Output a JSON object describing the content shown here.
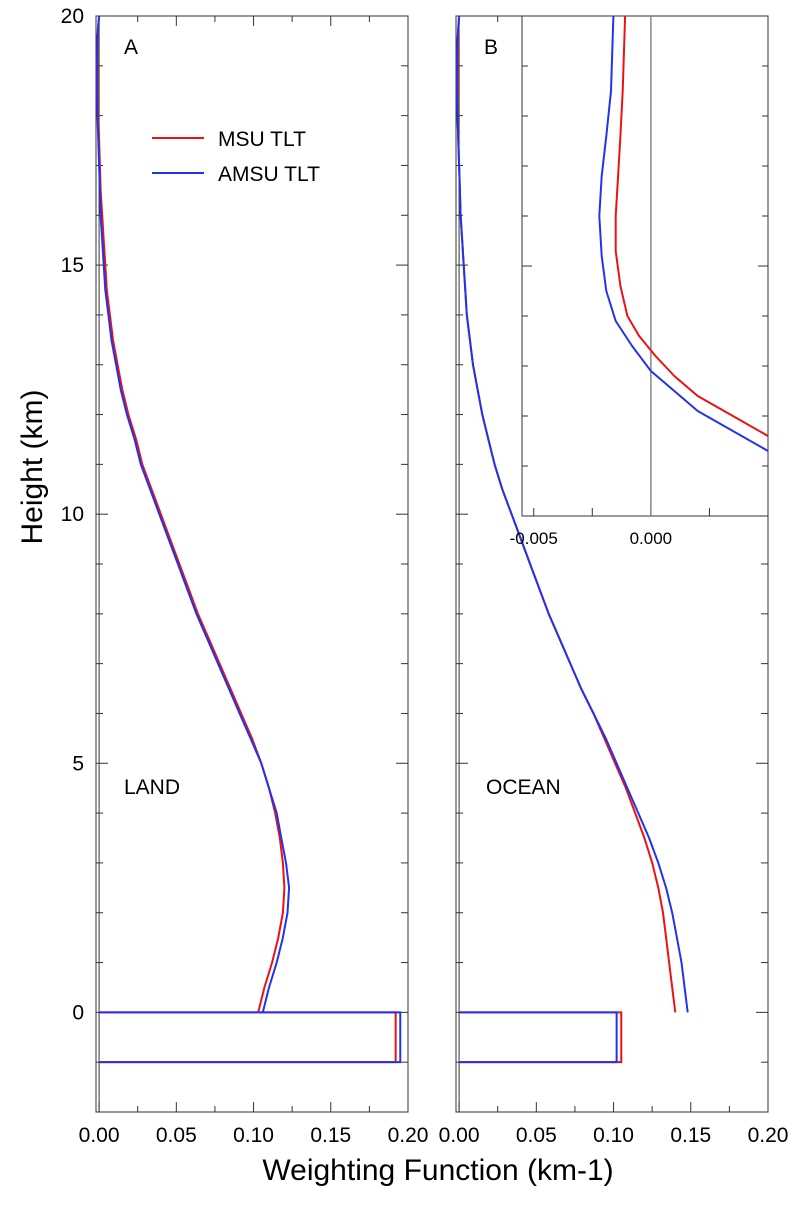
{
  "figure": {
    "ylabel": "Height (km)",
    "xlabel": "Weighting Function (km-1)"
  },
  "legend": {
    "entries": [
      {
        "name": "MSU TLT",
        "color": "#ee1111"
      },
      {
        "name": "AMSU TLT",
        "color": "#2233ee"
      }
    ]
  },
  "chart_data": [
    {
      "type": "line",
      "panel": "A",
      "surface": "LAND",
      "xlim": [
        -0.002,
        0.2
      ],
      "ylim": [
        -2,
        20
      ],
      "xticks": [
        0.0,
        0.05,
        0.1,
        0.15,
        0.2
      ],
      "xtick_labels": [
        "0.00",
        "0.05",
        "0.10",
        "0.15",
        "0.20"
      ],
      "yticks": [
        0,
        5,
        10,
        15,
        20
      ],
      "ytick_labels": [
        "0",
        "5",
        "10",
        "15",
        "20"
      ],
      "series": [
        {
          "name": "MSU TLT",
          "color": "#ee1111",
          "profile": {
            "x": [
              0.103,
              0.107,
              0.112,
              0.116,
              0.119,
              0.12,
              0.119,
              0.117,
              0.114,
              0.11,
              0.105,
              0.099,
              0.092,
              0.085,
              0.078,
              0.071,
              0.064,
              0.058,
              0.052,
              0.046,
              0.04,
              0.034,
              0.028,
              0.024,
              0.019,
              0.015,
              0.012,
              0.009,
              0.007,
              0.005,
              0.004,
              0.003,
              0.002,
              0.001,
              0.0005,
              0.0,
              -0.0005,
              -0.001,
              -0.001,
              -0.001,
              -0.0008,
              -0.0005,
              0.0
            ],
            "y": [
              0.0,
              0.5,
              1.0,
              1.5,
              2.0,
              2.5,
              3.0,
              3.5,
              4.0,
              4.5,
              5.0,
              5.5,
              6.0,
              6.5,
              7.0,
              7.5,
              8.0,
              8.5,
              9.0,
              9.5,
              10.0,
              10.5,
              11.0,
              11.5,
              12.0,
              12.5,
              13.0,
              13.5,
              14.0,
              14.5,
              15.0,
              15.5,
              16.0,
              16.5,
              17.0,
              17.5,
              18.0,
              18.5,
              19.0,
              19.3,
              19.6,
              19.8,
              20.0
            ]
          },
          "surface_box": {
            "value": 0.192,
            "y": [
              -1,
              0
            ]
          }
        },
        {
          "name": "AMSU TLT",
          "color": "#2233ee",
          "profile": {
            "x": [
              0.106,
              0.11,
              0.115,
              0.119,
              0.122,
              0.123,
              0.121,
              0.118,
              0.115,
              0.11,
              0.105,
              0.098,
              0.091,
              0.084,
              0.077,
              0.07,
              0.063,
              0.057,
              0.051,
              0.045,
              0.039,
              0.033,
              0.027,
              0.023,
              0.018,
              0.014,
              0.011,
              0.008,
              0.006,
              0.004,
              0.003,
              0.002,
              0.001,
              0.0005,
              0.0,
              -0.0005,
              -0.001,
              -0.0015,
              -0.0015,
              -0.0012,
              -0.001,
              -0.0006,
              0.0
            ],
            "y": [
              0.0,
              0.5,
              1.0,
              1.5,
              2.0,
              2.5,
              3.0,
              3.5,
              4.0,
              4.5,
              5.0,
              5.5,
              6.0,
              6.5,
              7.0,
              7.5,
              8.0,
              8.5,
              9.0,
              9.5,
              10.0,
              10.5,
              11.0,
              11.5,
              12.0,
              12.5,
              13.0,
              13.5,
              14.0,
              14.5,
              15.0,
              15.5,
              16.0,
              16.5,
              17.0,
              17.5,
              18.0,
              18.5,
              19.0,
              19.3,
              19.6,
              19.8,
              20.0
            ]
          },
          "surface_box": {
            "value": 0.195,
            "y": [
              -1,
              0
            ]
          }
        }
      ]
    },
    {
      "type": "line",
      "panel": "B",
      "surface": "OCEAN",
      "xlim": [
        -0.002,
        0.2
      ],
      "ylim": [
        -2,
        20
      ],
      "xticks": [
        0.0,
        0.05,
        0.1,
        0.15,
        0.2
      ],
      "xtick_labels": [
        "0.00",
        "0.05",
        "0.10",
        "0.15",
        "0.20"
      ],
      "yticks": [
        0,
        5,
        10,
        15,
        20
      ],
      "ytick_labels": [
        "0",
        "5",
        "10",
        "15",
        "20"
      ],
      "series": [
        {
          "name": "MSU TLT",
          "color": "#ee1111",
          "profile": {
            "x": [
              0.14,
              0.138,
              0.136,
              0.134,
              0.132,
              0.129,
              0.125,
              0.12,
              0.114,
              0.108,
              0.101,
              0.094,
              0.087,
              0.079,
              0.072,
              0.065,
              0.058,
              0.052,
              0.046,
              0.04,
              0.034,
              0.028,
              0.023,
              0.019,
              0.015,
              0.012,
              0.009,
              0.007,
              0.005,
              0.004,
              0.003,
              0.002,
              0.001,
              0.0005,
              0.0,
              -0.0005,
              -0.001,
              -0.001,
              -0.001,
              -0.0008,
              -0.0005,
              0.0
            ],
            "y": [
              0.0,
              0.5,
              1.0,
              1.5,
              2.0,
              2.5,
              3.0,
              3.5,
              4.0,
              4.5,
              5.0,
              5.5,
              6.0,
              6.5,
              7.0,
              7.5,
              8.0,
              8.5,
              9.0,
              9.5,
              10.0,
              10.5,
              11.0,
              11.5,
              12.0,
              12.5,
              13.0,
              13.5,
              14.0,
              14.5,
              15.0,
              15.5,
              16.0,
              16.5,
              17.0,
              17.5,
              18.0,
              18.5,
              19.0,
              19.4,
              19.7,
              20.0
            ]
          },
          "surface_box": {
            "value": 0.105,
            "y": [
              -1,
              0
            ]
          }
        },
        {
          "name": "AMSU TLT",
          "color": "#2233ee",
          "profile": {
            "x": [
              0.148,
              0.146,
              0.144,
              0.141,
              0.138,
              0.134,
              0.129,
              0.123,
              0.116,
              0.109,
              0.102,
              0.095,
              0.087,
              0.079,
              0.072,
              0.065,
              0.058,
              0.052,
              0.046,
              0.04,
              0.034,
              0.028,
              0.023,
              0.019,
              0.015,
              0.012,
              0.009,
              0.007,
              0.005,
              0.004,
              0.003,
              0.002,
              0.001,
              0.0005,
              0.0,
              -0.0005,
              -0.001,
              -0.0015,
              -0.0015,
              -0.0012,
              -0.0007,
              0.0
            ],
            "y": [
              0.0,
              0.5,
              1.0,
              1.5,
              2.0,
              2.5,
              3.0,
              3.5,
              4.0,
              4.5,
              5.0,
              5.5,
              6.0,
              6.5,
              7.0,
              7.5,
              8.0,
              8.5,
              9.0,
              9.5,
              10.0,
              10.5,
              11.0,
              11.5,
              12.0,
              12.5,
              13.0,
              13.5,
              14.0,
              14.5,
              15.0,
              15.5,
              16.0,
              16.5,
              17.0,
              17.5,
              18.0,
              18.5,
              19.0,
              19.4,
              19.7,
              20.0
            ]
          },
          "surface_box": {
            "value": 0.102,
            "y": [
              -1,
              0
            ]
          }
        }
      ],
      "inset": {
        "xlim": [
          -0.0055,
          0.005
        ],
        "ylim": [
          10,
          20
        ],
        "xticks": [
          -0.005,
          0.0
        ],
        "xtick_labels": [
          "-0.005",
          "0.000"
        ],
        "zero_line": true,
        "series": [
          {
            "name": "MSU TLT",
            "color": "#ee1111",
            "x": [
              0.005,
              0.0035,
              0.002,
              0.001,
              0.0002,
              -0.0005,
              -0.001,
              -0.0013,
              -0.0015,
              -0.0015,
              -0.0014,
              -0.0013,
              -0.0012,
              -0.0011
            ],
            "y": [
              11.6,
              12.0,
              12.4,
              12.8,
              13.2,
              13.6,
              14.0,
              14.6,
              15.3,
              16.0,
              16.8,
              17.6,
              18.5,
              20.0
            ]
          },
          {
            "name": "AMSU TLT",
            "color": "#2233ee",
            "x": [
              0.005,
              0.0035,
              0.002,
              0.001,
              0.0,
              -0.0008,
              -0.0015,
              -0.0019,
              -0.0021,
              -0.0022,
              -0.0021,
              -0.0019,
              -0.0017,
              -0.0016
            ],
            "y": [
              11.3,
              11.7,
              12.1,
              12.5,
              12.9,
              13.4,
              13.9,
              14.5,
              15.2,
              16.0,
              16.8,
              17.6,
              18.5,
              20.0
            ]
          }
        ]
      }
    }
  ]
}
